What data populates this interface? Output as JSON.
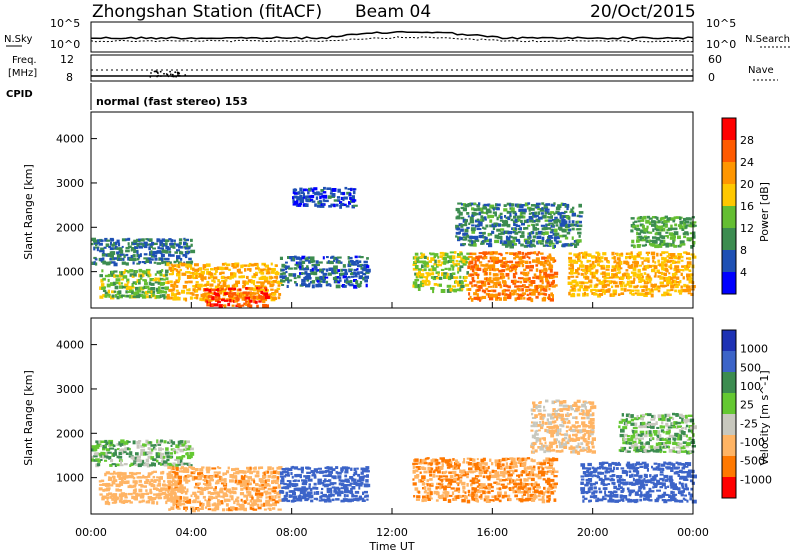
{
  "header": {
    "station": "Zhongshan Station (fitACF)",
    "beam": "Beam 04",
    "date": "20/Oct/2015"
  },
  "status_panels": {
    "nsky_label": "N.Sky",
    "nsky_ticks": [
      "10^5",
      "10^0"
    ],
    "nsearch_label": "N.Search",
    "nsearch_ticks": [
      "10^5",
      "10^0"
    ],
    "freq_label_1": "Freq.",
    "freq_label_2": "[MHz]",
    "freq_ticks": [
      "12",
      "8"
    ],
    "nave_label": "Nave",
    "nave_ticks": [
      "60",
      "0"
    ],
    "cpid_label": "CPID",
    "cpid_text": "normal (fast stereo) 153"
  },
  "chart_data": [
    {
      "type": "heatmap",
      "panel": "power",
      "ylabel": "Slant Range [km]",
      "xlabel": "",
      "y_ticks": [
        "4000",
        "3000",
        "2000",
        "1000"
      ],
      "ylim": [
        180,
        4600
      ],
      "xlim": [
        0,
        24
      ],
      "colorbar_label": "Power [dB]",
      "colorbar_ticks": [
        "28",
        "24",
        "20",
        "16",
        "12",
        "8",
        "4"
      ],
      "colorbar_colors": [
        "#ff0000",
        "#ff5a00",
        "#ff9600",
        "#ffc800",
        "#64be32",
        "#3c8c50",
        "#1e50b4",
        "#0000ff"
      ],
      "colorbar_range": [
        0,
        32
      ],
      "structures": [
        {
          "t0": 0.0,
          "t1": 4.0,
          "r0": 1200,
          "r1": 1800,
          "level": 8
        },
        {
          "t0": 0.3,
          "t1": 3.0,
          "r0": 450,
          "r1": 1100,
          "level": 14
        },
        {
          "t0": 3.0,
          "t1": 7.5,
          "r0": 400,
          "r1": 1250,
          "level": 20
        },
        {
          "t0": 4.5,
          "t1": 7.0,
          "r0": 250,
          "r1": 700,
          "level": 27
        },
        {
          "t0": 7.5,
          "t1": 11.0,
          "r0": 700,
          "r1": 1400,
          "level": 7
        },
        {
          "t0": 8.0,
          "t1": 10.5,
          "r0": 2500,
          "r1": 2950,
          "level": 5
        },
        {
          "t0": 12.8,
          "t1": 15.0,
          "r0": 600,
          "r1": 1500,
          "level": 15
        },
        {
          "t0": 15.0,
          "t1": 18.5,
          "r0": 400,
          "r1": 1500,
          "level": 24
        },
        {
          "t0": 14.5,
          "t1": 19.5,
          "r0": 1600,
          "r1": 2600,
          "level": 9
        },
        {
          "t0": 19.0,
          "t1": 24.0,
          "r0": 500,
          "r1": 1500,
          "level": 20
        },
        {
          "t0": 21.5,
          "t1": 24.0,
          "r0": 1600,
          "r1": 2300,
          "level": 12
        }
      ]
    },
    {
      "type": "heatmap",
      "panel": "velocity",
      "ylabel": "Slant Range [km]",
      "xlabel": "Time UT",
      "y_ticks": [
        "4000",
        "3000",
        "2000",
        "1000"
      ],
      "ylim": [
        180,
        4600
      ],
      "xlim": [
        0,
        24
      ],
      "x_ticks": [
        "00:00",
        "04:00",
        "08:00",
        "12:00",
        "16:00",
        "20:00",
        "00:00"
      ],
      "colorbar_label": "Velocity [m s^-1]",
      "colorbar_ticks": [
        "1000",
        "500",
        "100",
        "25",
        "-25",
        "-100",
        "-500",
        "-1000"
      ],
      "colorbar_colors": [
        "#1e32b4",
        "#3c64c8",
        "#3c8c50",
        "#64c832",
        "#c8c8be",
        "#ffb464",
        "#ff7800",
        "#ff0000"
      ],
      "structures": [
        {
          "t0": 0.0,
          "t1": 4.0,
          "r0": 1300,
          "r1": 1900,
          "value": 0
        },
        {
          "t0": 0.3,
          "t1": 3.5,
          "r0": 450,
          "r1": 1200,
          "value": -300
        },
        {
          "t0": 3.0,
          "t1": 7.5,
          "r0": 300,
          "r1": 1300,
          "value": -450
        },
        {
          "t0": 7.5,
          "t1": 11.0,
          "r0": 500,
          "r1": 1300,
          "value": 200
        },
        {
          "t0": 12.8,
          "t1": 18.5,
          "r0": 500,
          "r1": 1500,
          "value": -500
        },
        {
          "t0": 17.5,
          "t1": 20.0,
          "r0": 1600,
          "r1": 2800,
          "value": -120
        },
        {
          "t0": 19.5,
          "t1": 24.0,
          "r0": 500,
          "r1": 1400,
          "value": 200
        },
        {
          "t0": 21.0,
          "t1": 24.0,
          "r0": 1600,
          "r1": 2500,
          "value": 0
        }
      ]
    }
  ]
}
